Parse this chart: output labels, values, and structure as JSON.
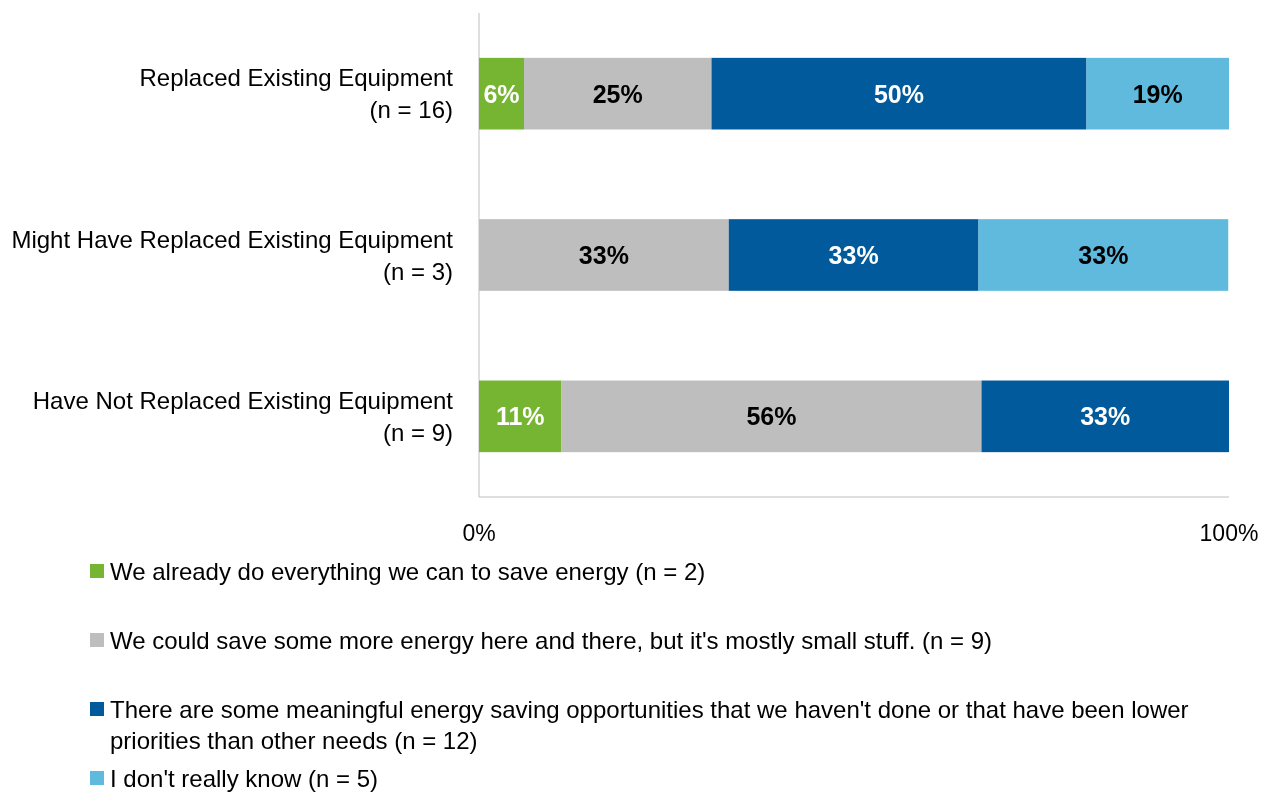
{
  "chart_data": {
    "type": "bar",
    "orientation": "horizontal",
    "stacked": true,
    "categories": [
      "Replaced Existing Equipment\n(n = 16)",
      "Might Have Replaced Existing Equipment\n(n = 3)",
      "Have Not Replaced Existing Equipment\n(n = 9)"
    ],
    "xlim": [
      0,
      100
    ],
    "xticks": [
      {
        "value": 0,
        "label": "0%"
      },
      {
        "value": 100,
        "label": "100%"
      }
    ],
    "legend": "bottom",
    "series": [
      {
        "name": "We already do everything we can to save energy (n = 2)",
        "color": "#76b531",
        "values": [
          6,
          null,
          11
        ],
        "value_labels": [
          "6%",
          null,
          "11%"
        ]
      },
      {
        "name": "We could save some more energy here and there, but it's mostly small stuff. (n = 9)",
        "color": "#bebebe",
        "values": [
          25,
          33.3,
          56
        ],
        "value_labels": [
          "25%",
          "33%",
          "56%"
        ]
      },
      {
        "name": "There are some meaningful energy saving opportunities that we haven't done or that have been lower priorities than other needs (n = 12)",
        "color": "#005a9c",
        "values": [
          50,
          33.3,
          33
        ],
        "value_labels": [
          "50%",
          "33%",
          "33%"
        ]
      },
      {
        "name": "I don't really know (n = 5)",
        "color": "#5fbadd",
        "values": [
          19,
          33.3,
          null
        ],
        "value_labels": [
          "19%",
          "33%",
          null
        ]
      }
    ]
  }
}
